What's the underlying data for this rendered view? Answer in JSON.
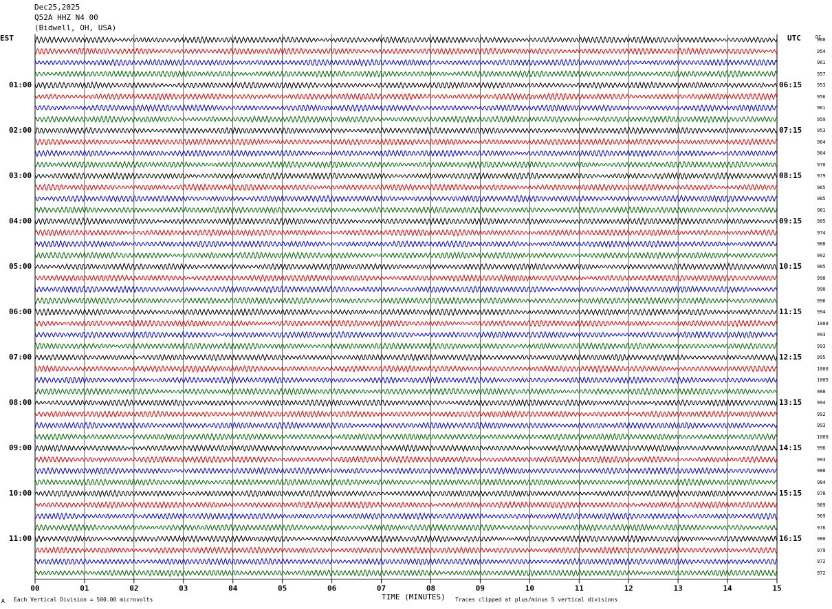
{
  "header": {
    "date": "Dec25,2025",
    "station": "Q52A HHZ N4 00",
    "location": "(Bidwell, OH, USA)"
  },
  "labels": {
    "left_zone": "EST",
    "right_zone": "UTC",
    "dc_header": "DC",
    "x_axis_title": "TIME (MINUTES)",
    "scale_note": "Each Vertical Division =  500.00 microvolts",
    "clip_note": "Traces clipped at plus/minus 5 vertical divisions",
    "corner_mark": "A"
  },
  "colors": {
    "trace_cycle": [
      "#000000",
      "#e00000",
      "#0000d0",
      "#006400"
    ],
    "grid": "#000000"
  },
  "chart_data": {
    "type": "line",
    "description_kind": "helicorder",
    "x_ticks": [
      "00",
      "01",
      "02",
      "03",
      "04",
      "05",
      "06",
      "07",
      "08",
      "09",
      "10",
      "11",
      "12",
      "13",
      "14",
      "15"
    ],
    "xlim": [
      0,
      15
    ],
    "minutes_per_line": 15,
    "lines_per_hour": 4,
    "left_hour_labels": [
      {
        "line": 4,
        "text": "01:00"
      },
      {
        "line": 8,
        "text": "02:00"
      },
      {
        "line": 12,
        "text": "03:00"
      },
      {
        "line": 16,
        "text": "04:00"
      },
      {
        "line": 20,
        "text": "05:00"
      },
      {
        "line": 24,
        "text": "06:00"
      },
      {
        "line": 28,
        "text": "07:00"
      },
      {
        "line": 32,
        "text": "08:00"
      },
      {
        "line": 36,
        "text": "09:00"
      },
      {
        "line": 40,
        "text": "10:00"
      },
      {
        "line": 44,
        "text": "11:00"
      }
    ],
    "right_hour_labels": [
      {
        "line": 4,
        "text": "06:15"
      },
      {
        "line": 8,
        "text": "07:15"
      },
      {
        "line": 12,
        "text": "08:15"
      },
      {
        "line": 16,
        "text": "09:15"
      },
      {
        "line": 20,
        "text": "10:15"
      },
      {
        "line": 24,
        "text": "11:15"
      },
      {
        "line": 28,
        "text": "12:15"
      },
      {
        "line": 32,
        "text": "13:15"
      },
      {
        "line": 36,
        "text": "14:15"
      },
      {
        "line": 40,
        "text": "15:15"
      },
      {
        "line": 44,
        "text": "16:15"
      }
    ],
    "dc_offsets": [
      960,
      954,
      961,
      957,
      953,
      956,
      961,
      959,
      953,
      964,
      964,
      970,
      979,
      965,
      985,
      981,
      985,
      974,
      988,
      992,
      985,
      990,
      990,
      996,
      994,
      1000,
      993,
      993,
      995,
      1000,
      1005,
      988,
      994,
      992,
      993,
      1000,
      996,
      993,
      988,
      984,
      978,
      989,
      969,
      976,
      980,
      979,
      972,
      972
    ],
    "trace_count": 48
  }
}
